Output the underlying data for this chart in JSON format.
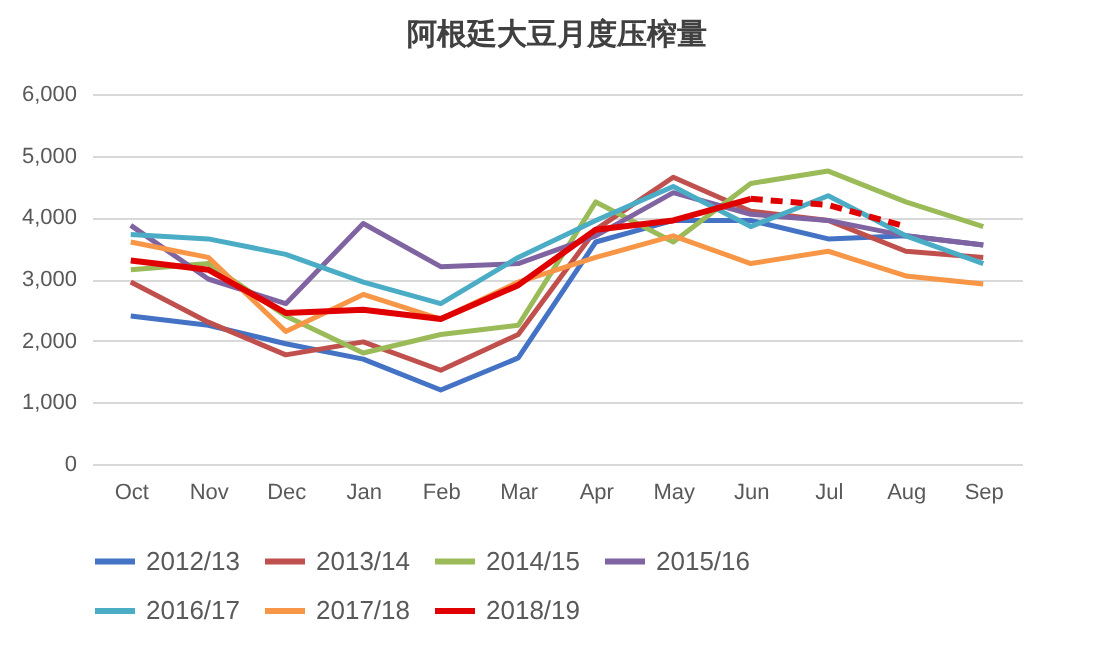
{
  "chart_data": {
    "type": "line",
    "title": "阿根廷大豆月度压榨量",
    "categories": [
      "Oct",
      "Nov",
      "Dec",
      "Jan",
      "Feb",
      "Mar",
      "Apr",
      "May",
      "Jun",
      "Jul",
      "Aug",
      "Sep"
    ],
    "ylim": [
      0,
      6000
    ],
    "yticks": [
      {
        "value": 0,
        "label": "0"
      },
      {
        "value": 1000,
        "label": "1,000"
      },
      {
        "value": 2000,
        "label": "2,000"
      },
      {
        "value": 3000,
        "label": "3,000"
      },
      {
        "value": 4000,
        "label": "4,000"
      },
      {
        "value": 5000,
        "label": "5,000"
      },
      {
        "value": 6000,
        "label": "6,000"
      }
    ],
    "grid": "y",
    "legend": "bottom",
    "line_style": "solid",
    "series": [
      {
        "name": "2012/13",
        "color": "#4472c4",
        "values": [
          2400,
          2250,
          1950,
          1700,
          1200,
          1720,
          3600,
          3950,
          3950,
          3650,
          3700,
          3550
        ]
      },
      {
        "name": "2013/14",
        "color": "#c0504d",
        "values": [
          2950,
          2300,
          1770,
          1980,
          1520,
          2100,
          3800,
          4650,
          4100,
          3950,
          3450,
          3350
        ]
      },
      {
        "name": "2014/15",
        "color": "#9bbb59",
        "values": [
          3150,
          3250,
          2400,
          1800,
          2100,
          2250,
          4250,
          3600,
          4550,
          4750,
          4250,
          3850
        ]
      },
      {
        "name": "2015/16",
        "color": "#8064a2",
        "values": [
          3870,
          3000,
          2600,
          3900,
          3200,
          3250,
          3700,
          4400,
          4050,
          3950,
          3700,
          3550
        ]
      },
      {
        "name": "2016/17",
        "color": "#4bacc6",
        "values": [
          3720,
          3650,
          3400,
          2950,
          2600,
          3350,
          3950,
          4500,
          3850,
          4350,
          3700,
          3250
        ]
      },
      {
        "name": "2017/18",
        "color": "#f79646",
        "values": [
          3600,
          3350,
          2150,
          2750,
          2350,
          2950,
          3350,
          3700,
          3250,
          3450,
          3050,
          2920
        ]
      },
      {
        "name": "2018/19",
        "color": "#e00000",
        "values": [
          3300,
          3150,
          2450,
          2500,
          2350,
          2900,
          3800,
          3950,
          4300,
          null,
          null,
          null
        ]
      },
      {
        "color": "#e00000",
        "line_style": "dashed",
        "values": [
          null,
          null,
          null,
          null,
          null,
          null,
          null,
          null,
          4300,
          4200,
          3850,
          null
        ]
      }
    ]
  }
}
